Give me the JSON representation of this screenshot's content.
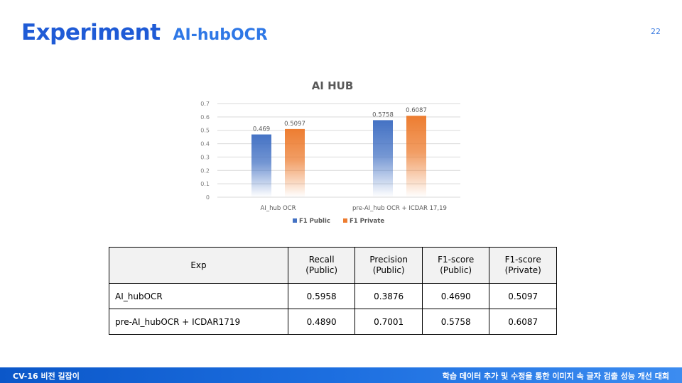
{
  "slide": {
    "title": "Experiment",
    "subtitle": "AI-hubOCR",
    "page_number": "22"
  },
  "chart_data": {
    "type": "bar",
    "title": "AI HUB",
    "categories": [
      "AI_hub OCR",
      "pre-AI_hub OCR + ICDAR 17,19"
    ],
    "series": [
      {
        "name": "F1 Public",
        "values": [
          0.469,
          0.5758
        ],
        "labels": [
          "0.469",
          "0.5758"
        ],
        "color": "#4472c4"
      },
      {
        "name": "F1 Private",
        "values": [
          0.5097,
          0.6087
        ],
        "labels": [
          "0.5097",
          "0.6087"
        ],
        "color": "#ed7d31"
      }
    ],
    "ylim": [
      0,
      0.7
    ],
    "yticks": [
      "0",
      "0.1",
      "0.2",
      "0.3",
      "0.4",
      "0.5",
      "0.6",
      "0.7"
    ],
    "grid": true,
    "legend": "bottom"
  },
  "table": {
    "headers": [
      [
        "Exp"
      ],
      [
        "Recall",
        "(Public)"
      ],
      [
        "Precision",
        "(Public)"
      ],
      [
        "F1-score",
        "(Public)"
      ],
      [
        "F1-score",
        "(Private)"
      ]
    ],
    "rows": [
      [
        "AI_hubOCR",
        "0.5958",
        "0.3876",
        "0.4690",
        "0.5097"
      ],
      [
        "pre-AI_hubOCR + ICDAR1719",
        "0.4890",
        "0.7001",
        "0.5758",
        "0.6087"
      ]
    ]
  },
  "footer": {
    "left": "CV-16 비전 길잡이",
    "right": "학습 데이터 추가 및 수정을 통한 이미지 속 글자 검출 성능 개선 대회"
  },
  "colors": {
    "title": "#1f5bd6",
    "footer": "#1d6fe0"
  }
}
